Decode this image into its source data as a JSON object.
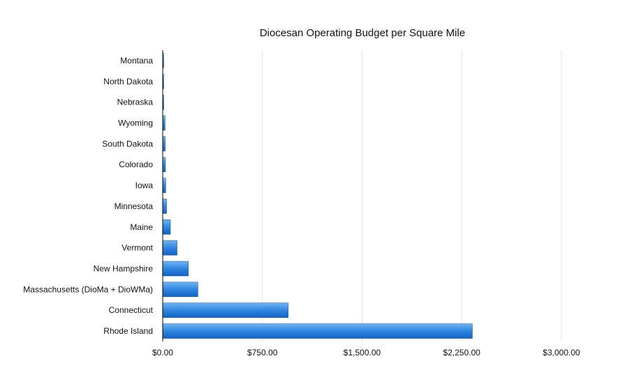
{
  "chart_data": {
    "type": "bar",
    "orientation": "horizontal",
    "title": "Diocesan Operating Budget per Square Mile",
    "xlabel": "",
    "ylabel": "",
    "categories": [
      "Montana",
      "North Dakota",
      "Nebraska",
      "Wyoming",
      "South Dakota",
      "Colorado",
      "Iowa",
      "Minnesota",
      "Maine",
      "Vermont",
      "New Hampshire",
      "Massachusetts (DioMa + DioWMa)",
      "Connecticut",
      "Rhode Island"
    ],
    "values": [
      4,
      6,
      8,
      18,
      19,
      21,
      23,
      29,
      58,
      108,
      193,
      265,
      945,
      2330
    ],
    "xlim": [
      0,
      3000
    ],
    "xticks": [
      "$0.00",
      "$750.00",
      "$1,500.00",
      "$2,250.00",
      "$3,000.00"
    ],
    "xtick_values": [
      0,
      750,
      1500,
      2250,
      3000
    ],
    "grid": true,
    "legend": "none",
    "colors": {
      "bar_top": "#6fb4f2",
      "bar_mid": "#2f86e0",
      "bar_bottom": "#1563c4",
      "bar_edge": "#0c4f9c"
    }
  }
}
